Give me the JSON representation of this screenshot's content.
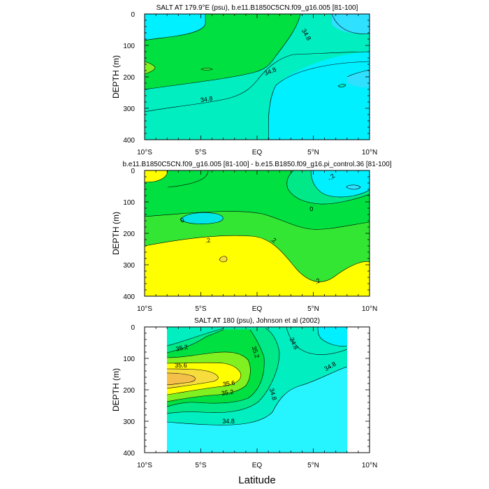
{
  "colors": {
    "cyan": "#00f0ff",
    "light_cyan": "#26f5ff",
    "aqua": "#00e5e5",
    "blue_cyan": "#30e0ff",
    "mint": "#00eec0",
    "sea_green": "#00e888",
    "green": "#00e040",
    "mid_green": "#33e633",
    "lime": "#80f020",
    "yellow": "#ffff00",
    "gold": "#f6dc3c",
    "orange": "#f5c04a",
    "contour": "#000000"
  },
  "chart_data": [
    {
      "type": "contour",
      "title": "SALT AT 179.9°E (psu), b.e11.B1850C5CN.f09_g16.005 [81-100]",
      "ylabel": "DEPTH (m)",
      "xlabel": "",
      "xlim": [
        -10,
        10
      ],
      "ylim": [
        400,
        0
      ],
      "xticks": [
        -10,
        -5,
        0,
        5,
        10
      ],
      "xtick_labels": [
        "10°S",
        "5°S",
        "EQ",
        "5°N",
        "10°N"
      ],
      "yticks": [
        0,
        100,
        200,
        300,
        400
      ],
      "ytick_labels": [
        "0",
        "100",
        "200",
        "300",
        "400"
      ],
      "contour_labels": [
        "34.8",
        "34.8",
        "34.8"
      ]
    },
    {
      "type": "contour",
      "title": "b.e11.B1850C5CN.f09_g16.005 [81-100] - b.e15.B1850.f09_g16.pi_control.36 [81-100]",
      "ylabel": "DEPTH (m)",
      "xlabel": "",
      "xlim": [
        -10,
        10
      ],
      "ylim": [
        400,
        0
      ],
      "xticks": [
        -10,
        -5,
        0,
        5,
        10
      ],
      "xtick_labels": [
        "10°S",
        "5°S",
        "EQ",
        "5°N",
        "10°N"
      ],
      "yticks": [
        0,
        100,
        200,
        300,
        400
      ],
      "ytick_labels": [
        "0",
        "100",
        "200",
        "300",
        "400"
      ],
      "contour_labels": [
        "-.2",
        "0",
        "0",
        ".2",
        ".2",
        ".2"
      ]
    },
    {
      "type": "contour",
      "title": "SALT AT 180 (psu), Johnson et al (2002)",
      "ylabel": "DEPTH (m)",
      "xlabel": "Latitude",
      "xlim": [
        -10,
        10
      ],
      "ylim": [
        400,
        0
      ],
      "data_xlim": [
        -8,
        8
      ],
      "xticks": [
        -10,
        -5,
        0,
        5,
        10
      ],
      "xtick_labels": [
        "10°S",
        "5°S",
        "EQ",
        "5°N",
        "10°N"
      ],
      "yticks": [
        0,
        100,
        200,
        300,
        400
      ],
      "ytick_labels": [
        "0",
        "100",
        "200",
        "300",
        "400"
      ],
      "contour_labels": [
        "35.2",
        "35.2",
        "35.6",
        "35.6",
        "35.2",
        "34.8",
        "34.8",
        "34.8",
        "34.8"
      ]
    }
  ]
}
